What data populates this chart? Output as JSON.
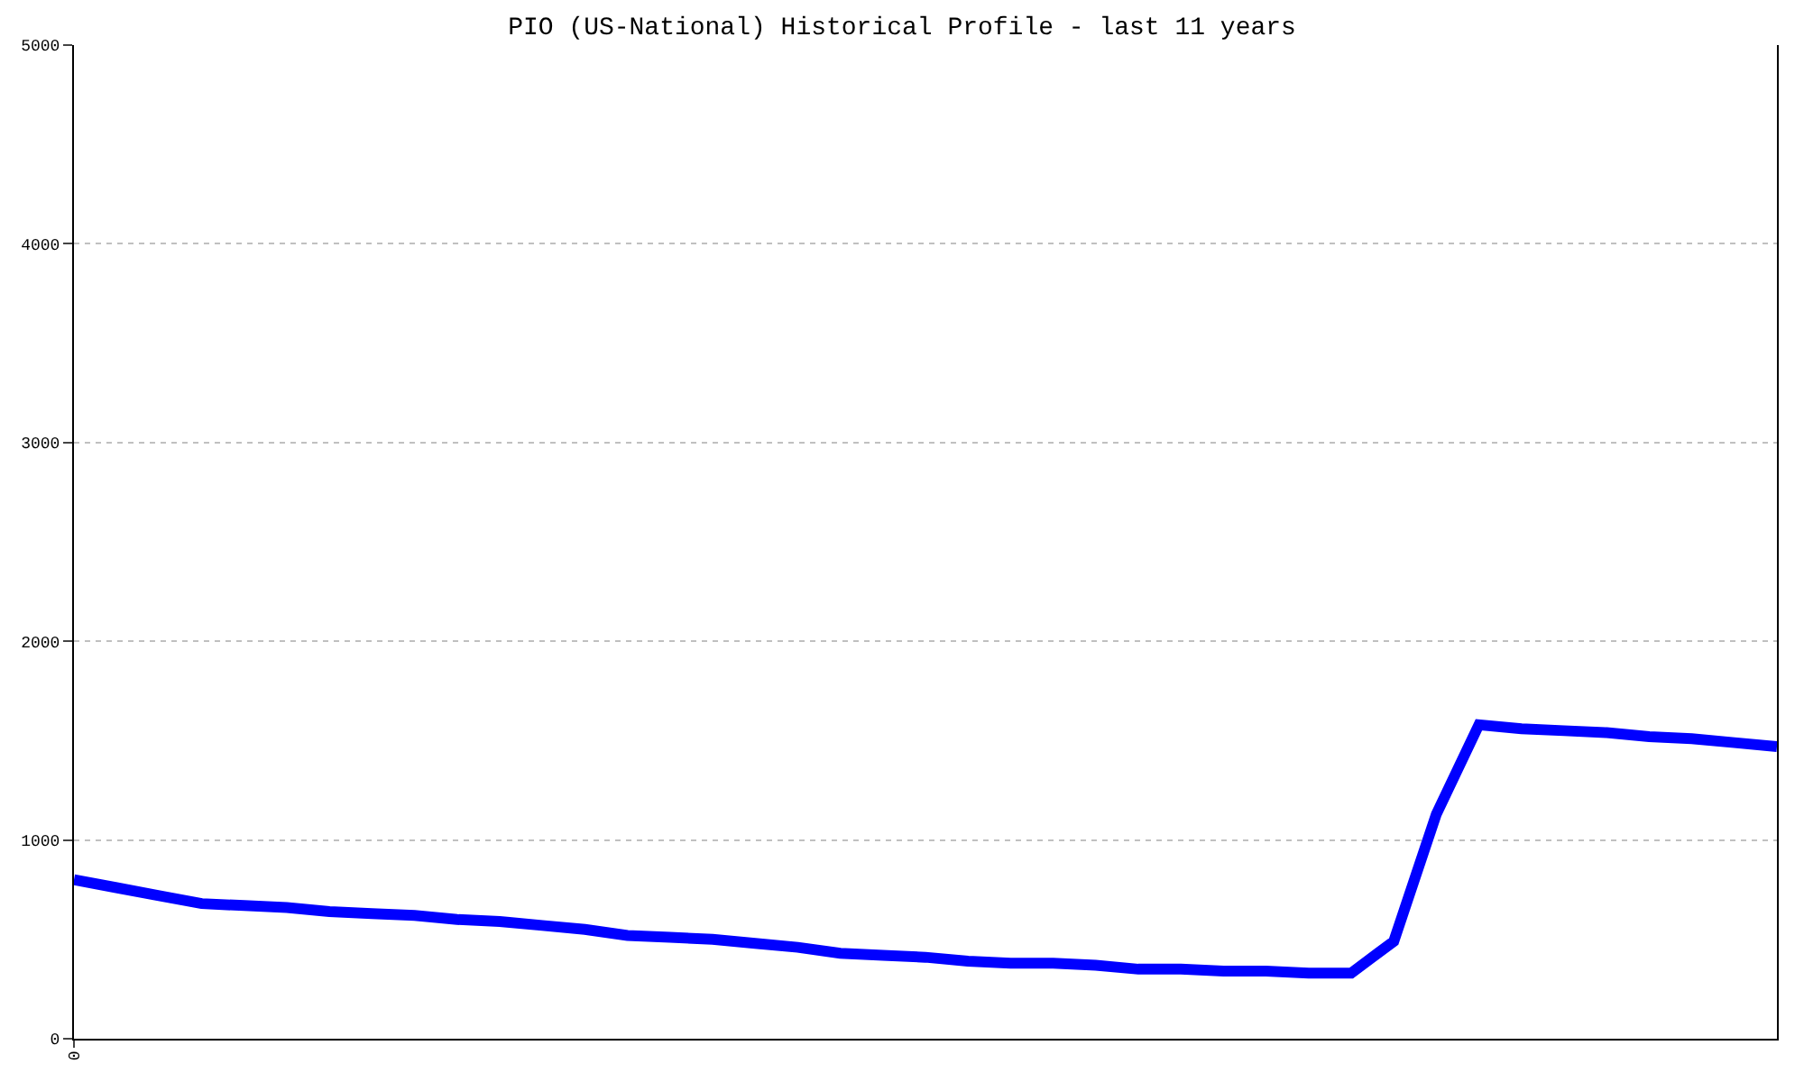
{
  "chart_data": {
    "type": "line",
    "title": "PIO (US-National) Historical Profile - last 11 years",
    "categories": [
      "0",
      null,
      null,
      null,
      null,
      null,
      null,
      null,
      null,
      null,
      null,
      null,
      null,
      null,
      null,
      null,
      null,
      null,
      null,
      null,
      null,
      null,
      null,
      null,
      null,
      null,
      null,
      null,
      null,
      null,
      null,
      null,
      null,
      null,
      null,
      null,
      null,
      null,
      null,
      null,
      null
    ],
    "series": [
      {
        "color": "#0000ff",
        "values": [
          800,
          760,
          720,
          680,
          670,
          660,
          640,
          630,
          620,
          600,
          590,
          570,
          550,
          520,
          510,
          500,
          480,
          460,
          430,
          420,
          410,
          390,
          380,
          380,
          370,
          350,
          350,
          340,
          340,
          330,
          330,
          490,
          1130,
          1580,
          1560,
          1550,
          1540,
          1520,
          1510,
          1490,
          1470
        ]
      }
    ],
    "ylim": [
      0,
      5000
    ],
    "yticks": [
      0,
      1000,
      2000,
      3000,
      4000,
      5000
    ],
    "grid": "y",
    "marker": "none",
    "line_style": "solid"
  }
}
